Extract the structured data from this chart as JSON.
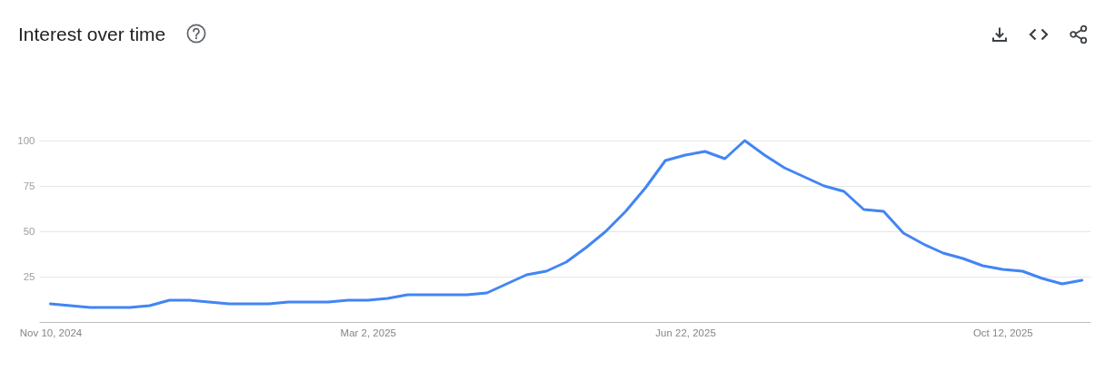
{
  "chart_data": {
    "type": "line",
    "title": "Interest over time",
    "x": [
      "2024-11-10",
      "2024-11-17",
      "2024-11-24",
      "2024-12-01",
      "2024-12-08",
      "2024-12-15",
      "2024-12-22",
      "2024-12-29",
      "2025-01-05",
      "2025-01-12",
      "2025-01-19",
      "2025-01-26",
      "2025-02-02",
      "2025-02-09",
      "2025-02-16",
      "2025-02-23",
      "2025-03-02",
      "2025-03-09",
      "2025-03-16",
      "2025-03-23",
      "2025-03-30",
      "2025-04-06",
      "2025-04-13",
      "2025-04-20",
      "2025-04-27",
      "2025-05-04",
      "2025-05-11",
      "2025-05-18",
      "2025-05-25",
      "2025-06-01",
      "2025-06-08",
      "2025-06-15",
      "2025-06-22",
      "2025-06-29",
      "2025-07-06",
      "2025-07-13",
      "2025-07-20",
      "2025-07-27",
      "2025-08-03",
      "2025-08-10",
      "2025-08-17",
      "2025-08-24",
      "2025-08-31",
      "2025-09-07",
      "2025-09-14",
      "2025-09-21",
      "2025-09-28",
      "2025-10-05",
      "2025-10-12",
      "2025-10-19",
      "2025-10-26",
      "2025-11-02",
      "2025-11-09"
    ],
    "values": [
      10,
      9,
      8,
      8,
      8,
      9,
      12,
      12,
      11,
      10,
      10,
      10,
      11,
      11,
      11,
      12,
      12,
      13,
      15,
      15,
      15,
      15,
      16,
      21,
      26,
      28,
      33,
      41,
      50,
      61,
      74,
      89,
      92,
      94,
      90,
      100,
      92,
      85,
      80,
      75,
      72,
      62,
      61,
      49,
      43,
      38,
      35,
      31,
      29,
      28,
      24,
      21,
      23
    ],
    "color": "#4285f4",
    "xlim": [
      "2024-11-06",
      "2025-11-12"
    ],
    "xticks": [
      {
        "value": "2024-11-10",
        "label": "Nov 10, 2024"
      },
      {
        "value": "2025-03-02",
        "label": "Mar 2, 2025"
      },
      {
        "value": "2025-06-22",
        "label": "Jun 22, 2025"
      },
      {
        "value": "2025-10-12",
        "label": "Oct 12, 2025"
      }
    ],
    "ylim": [
      0,
      100
    ],
    "yticks": [
      25,
      50,
      75,
      100
    ],
    "grid": "y"
  }
}
